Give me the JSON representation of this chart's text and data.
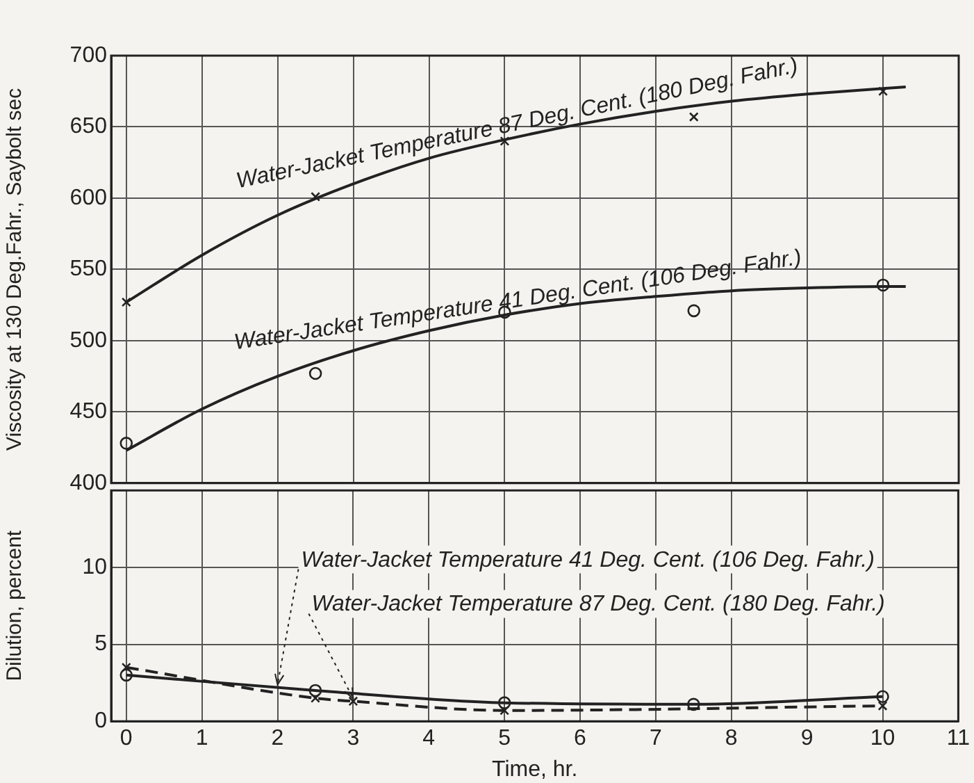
{
  "chart_data": [
    {
      "type": "line",
      "ylabel": "Viscosity at 130 Deg.Fahr., Saybolt sec",
      "xlim": [
        -0.2,
        11
      ],
      "xticks": [
        0,
        1,
        2,
        3,
        4,
        5,
        6,
        7,
        8,
        9,
        10,
        11
      ],
      "ylim": [
        400,
        700
      ],
      "yticks": [
        400,
        450,
        500,
        550,
        600,
        650,
        700
      ],
      "grid": true,
      "tick_labels": "y",
      "series": [
        {
          "type": "line",
          "color": "#222222",
          "marker": "none",
          "x": [
            0,
            1,
            2,
            3,
            4,
            5,
            6,
            7,
            8,
            9,
            10,
            10.3
          ],
          "values": [
            527,
            560,
            588,
            610,
            628,
            641,
            652,
            661,
            668,
            673,
            677,
            678
          ]
        },
        {
          "type": "line",
          "color": "#222222",
          "marker": "none",
          "x": [
            0,
            1,
            2,
            3,
            4,
            5,
            6,
            7,
            8,
            9,
            10,
            10.3
          ],
          "values": [
            423,
            452,
            475,
            493,
            507,
            518,
            526,
            531,
            535,
            537,
            538,
            538
          ]
        },
        {
          "type": "scatter",
          "color": "#222222",
          "marker": "cross",
          "x": [
            0,
            2.5,
            5,
            7.5,
            10
          ],
          "values": [
            527,
            601,
            640,
            657,
            675
          ]
        },
        {
          "type": "scatter",
          "color": "#222222",
          "marker": "circle",
          "x": [
            0,
            2.5,
            5,
            7.5,
            10
          ],
          "values": [
            428,
            477,
            520,
            521,
            539
          ]
        }
      ],
      "annotations": [
        {
          "text": "Water-Jacket Temperature 87 Deg. Cent. (180 Deg. Fahr.)",
          "x": 5.2,
          "y": 643
        },
        {
          "text": "Water-Jacket Temperature 41 Deg. Cent. (106 Deg. Fahr.)",
          "x": 5.2,
          "y": 519
        }
      ]
    },
    {
      "type": "line",
      "xlabel": "Time, hr.",
      "ylabel": "Dilution, percent",
      "xlim": [
        -0.2,
        11
      ],
      "xticks": [
        0,
        1,
        2,
        3,
        4,
        5,
        6,
        7,
        8,
        9,
        10,
        11
      ],
      "ylim": [
        0,
        15
      ],
      "yticks": [
        0,
        5,
        10
      ],
      "grid": true,
      "series": [
        {
          "type": "line",
          "color": "#222222",
          "marker": "circle",
          "line_style": "solid",
          "x": [
            0,
            2.5,
            5,
            7.5,
            10
          ],
          "values": [
            3.0,
            2.0,
            1.2,
            1.1,
            1.6
          ]
        },
        {
          "type": "line",
          "color": "#222222",
          "marker": "cross",
          "line_style": "dashed",
          "x": [
            0,
            2.5,
            3,
            5,
            7.5,
            10
          ],
          "values": [
            3.5,
            1.5,
            1.3,
            0.7,
            null,
            1.0
          ]
        }
      ],
      "annotations": [
        {
          "text": "Water-Jacket Temperature 41 Deg. Cent. (106 Deg. Fahr.)",
          "x": 2,
          "y": 2.2
        },
        {
          "text": "Water-Jacket Temperature 87 Deg. Cent. (180 Deg. Fahr.)",
          "x": 3,
          "y": 1.3
        }
      ]
    }
  ]
}
